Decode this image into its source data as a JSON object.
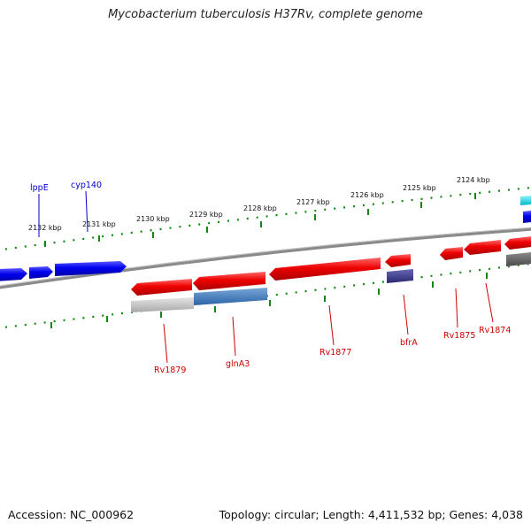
{
  "title": "Mycobacterium tuberculosis H37Rv, complete genome",
  "footer": {
    "accession": "Accession: NC_000962",
    "summary": "Topology: circular; Length: 4,411,532 bp; Genes: 4,038"
  },
  "colors": {
    "forward_gene": "#0000ee",
    "reverse_gene": "#ee0000",
    "label_forward": "#0000cc",
    "label_reverse": "#cc0000",
    "tick": "#118811",
    "backbone": "#8a8a8a",
    "cds_other": "#3e3a8a",
    "cds_cyan": "#00c8d8"
  },
  "ruler_labels": [
    "2132 kbp",
    "2131 kbp",
    "2130 kbp",
    "2129 kbp",
    "2128 kbp",
    "2127 kbp",
    "2126 kbp",
    "2125 kbp",
    "2124 kbp"
  ],
  "gene_labels": {
    "forward": [
      "lppE",
      "cyp140"
    ],
    "reverse": [
      "Rv1879",
      "glnA3",
      "Rv1877",
      "bfrA",
      "Rv1875",
      "Rv1874"
    ]
  }
}
